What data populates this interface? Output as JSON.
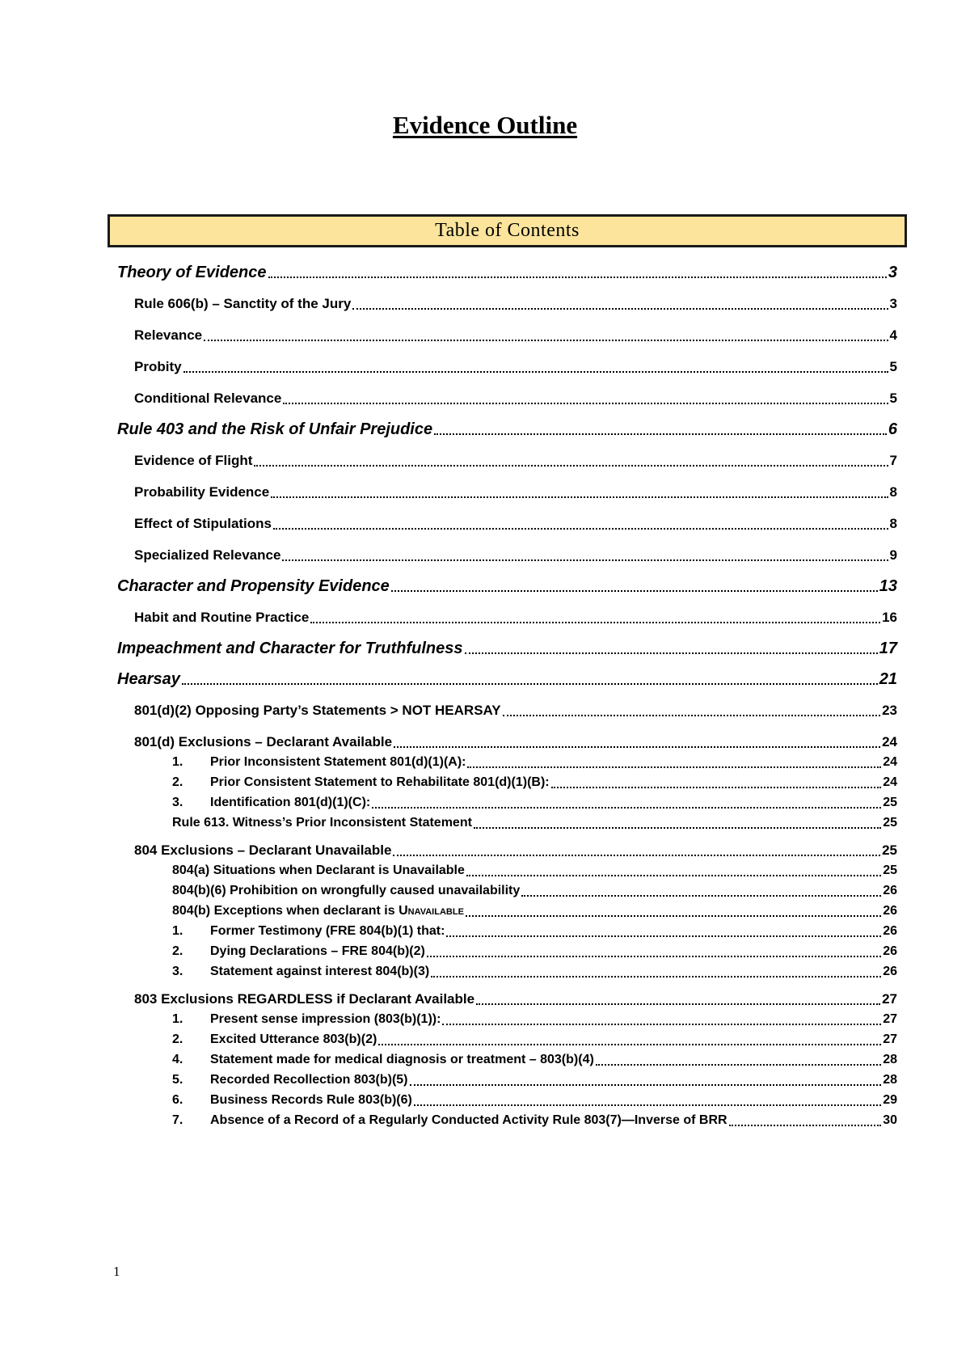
{
  "document": {
    "title": "Evidence Outline",
    "page_number": "1"
  },
  "toc": {
    "header": "Table of Contents",
    "entries": [
      {
        "label": "Theory of Evidence",
        "page": "3",
        "level": 1
      },
      {
        "label": "Rule 606(b) – Sanctity of the Jury",
        "page": "3",
        "level": 2
      },
      {
        "label": "Relevance",
        "page": "4",
        "level": 2
      },
      {
        "label": "Probity",
        "page": "5",
        "level": 2
      },
      {
        "label": "Conditional Relevance",
        "page": "5",
        "level": 2
      },
      {
        "label": "Rule 403 and the Risk of Unfair Prejudice",
        "page": "6",
        "level": 1
      },
      {
        "label": "Evidence of Flight",
        "page": "7",
        "level": 2
      },
      {
        "label": "Probability Evidence",
        "page": "8",
        "level": 2
      },
      {
        "label": "Effect of Stipulations",
        "page": "8",
        "level": 2
      },
      {
        "label": "Specialized Relevance",
        "page": "9",
        "level": 2
      },
      {
        "label": "Character and Propensity Evidence",
        "page": "13",
        "level": 1
      },
      {
        "label": "Habit and Routine Practice",
        "page": "16",
        "level": 2
      },
      {
        "label": "Impeachment and Character for Truthfulness",
        "page": "17",
        "level": 1
      },
      {
        "label": "Hearsay",
        "page": "21",
        "level": 1
      },
      {
        "label": "801(d)(2) Opposing Party’s Statements > NOT HEARSAY",
        "page": "23",
        "level": 2
      },
      {
        "label": "801(d) Exclusions – Declarant Available",
        "page": "24",
        "level": 2
      },
      {
        "num": "1.",
        "label": "Prior Inconsistent Statement 801(d)(1)(A):",
        "page": "24",
        "level": 3
      },
      {
        "num": "2.",
        "label": "Prior Consistent Statement to Rehabilitate 801(d)(1)(B):",
        "page": "24",
        "level": 3
      },
      {
        "num": "3.",
        "label": "Identification 801(d)(1)(C):",
        "page": "25",
        "level": 3
      },
      {
        "label": "Rule 613. Witness’s Prior Inconsistent Statement",
        "page": "25",
        "level": 3
      },
      {
        "label": "804 Exclusions – Declarant Unavailable",
        "page": "25",
        "level": 2
      },
      {
        "label": "804(a) Situations when Declarant is Unavailable",
        "page": "25",
        "level": 3
      },
      {
        "label": "804(b)(6) Prohibition on wrongfully caused unavailability",
        "page": "26",
        "level": 3
      },
      {
        "label": "804(b) Exceptions when declarant is ",
        "smallcaps": "Unavailable",
        "page": "26",
        "level": 3
      },
      {
        "num": "1.",
        "label": "Former Testimony (FRE 804(b)(1) that:",
        "page": "26",
        "level": 3
      },
      {
        "num": "2.",
        "label": "Dying Declarations – FRE 804(b)(2)",
        "page": "26",
        "level": 3
      },
      {
        "num": "3.",
        "label": "Statement against interest 804(b)(3)",
        "page": "26",
        "level": 3
      },
      {
        "label": "803 Exclusions REGARDLESS if Declarant Available",
        "page": "27",
        "level": 2
      },
      {
        "num": "1.",
        "label": "Present sense impression (803(b)(1)):",
        "page": "27",
        "level": 3
      },
      {
        "num": "2.",
        "label": "Excited Utterance 803(b)(2)",
        "page": "27",
        "level": 3
      },
      {
        "num": "4.",
        "label": "Statement made for medical diagnosis or treatment – 803(b)(4)",
        "page": "28",
        "level": 3
      },
      {
        "num": "5.",
        "label": "Recorded Recollection 803(b)(5)",
        "page": "28",
        "level": 3
      },
      {
        "num": "6.",
        "label": "Business Records Rule 803(b)(6)",
        "page": "29",
        "level": 3
      },
      {
        "num": "7.",
        "label": "Absence of a Record of a Regularly Conducted Activity Rule 803(7)—Inverse of BRR",
        "page": "30",
        "level": 3
      }
    ]
  },
  "colors": {
    "toc_header_fill": "#fce49c",
    "toc_header_border": "#1a1a1a",
    "text": "#000000"
  }
}
